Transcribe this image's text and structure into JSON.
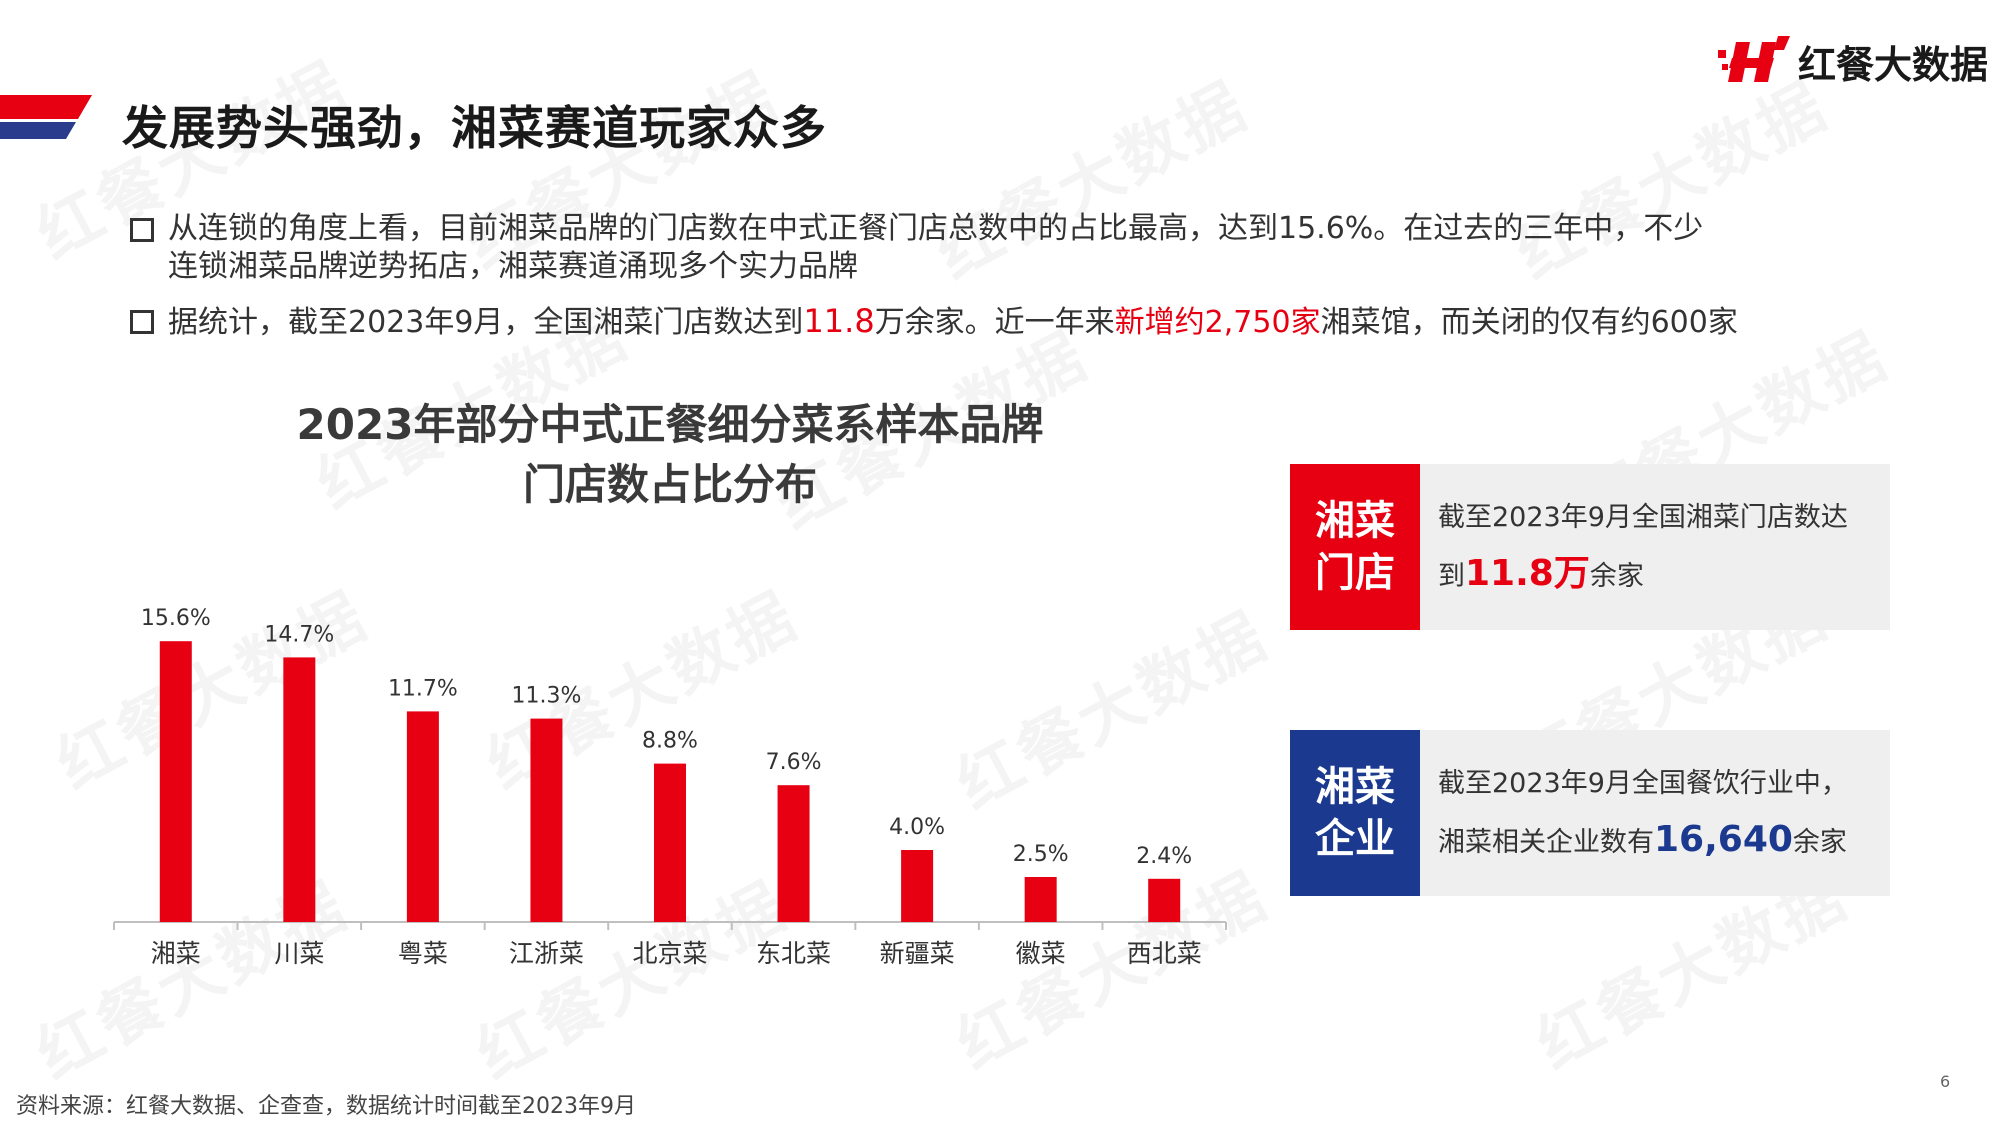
{
  "header": {
    "title": "发展势头强劲，湘菜赛道玩家众多",
    "logo_text": "红餐大数据",
    "logo_mark_color": "#e60012",
    "accent_red": "#e60012",
    "accent_blue": "#2a3a8c"
  },
  "bullets": [
    {
      "line1": "从连锁的角度上看，目前湘菜品牌的门店数在中式正餐门店总数中的占比最高，达到15.6%。在过去的三年中，不少",
      "line2": "连锁湘菜品牌逆势拓店，湘菜赛道涌现多个实力品牌"
    },
    {
      "part1": "据统计，截至2023年9月，全国湘菜门店数达到",
      "num": "11.8",
      "part2": "万余家。近一年来",
      "highlight": "新增约2,750家",
      "part3": "湘菜馆，而关闭的仅有约600家"
    }
  ],
  "chart_title": {
    "line1": "2023年部分中式正餐细分菜系样本品牌",
    "line2": "门店数占比分布"
  },
  "chart_data": {
    "type": "bar",
    "title": "2023年部分中式正餐细分菜系样本品牌门店数占比分布",
    "categories": [
      "湘菜",
      "川菜",
      "粤菜",
      "江浙菜",
      "北京菜",
      "东北菜",
      "新疆菜",
      "徽菜",
      "西北菜"
    ],
    "values": [
      15.6,
      14.7,
      11.7,
      11.3,
      8.8,
      7.6,
      4.0,
      2.5,
      2.4
    ],
    "value_labels": [
      "15.6%",
      "14.7%",
      "11.7%",
      "11.3%",
      "8.8%",
      "7.6%",
      "4.0%",
      "2.5%",
      "2.4%"
    ],
    "unit": "%",
    "ylim": [
      0,
      16
    ],
    "bar_color": "#e60012",
    "grid": false,
    "legend": "none"
  },
  "cards": [
    {
      "tag_line1": "湘菜",
      "tag_line2": "门店",
      "tag_color": "#e60012",
      "line1": "截至2023年9月全国湘菜门店数达",
      "line2_pre": "到",
      "line2_num": "11.8万",
      "line2_post": "余家"
    },
    {
      "tag_line1": "湘菜",
      "tag_line2": "企业",
      "tag_color": "#1b3a8f",
      "line1": "截至2023年9月全国餐饮行业中，",
      "line2_pre": "湘菜相关企业数有",
      "line2_num": "16,640",
      "line2_post": "余家"
    }
  ],
  "watermark": "红餐大数据",
  "source": "资料来源：红餐大数据、企查查，数据统计时间截至2023年9月",
  "page_number": "6"
}
